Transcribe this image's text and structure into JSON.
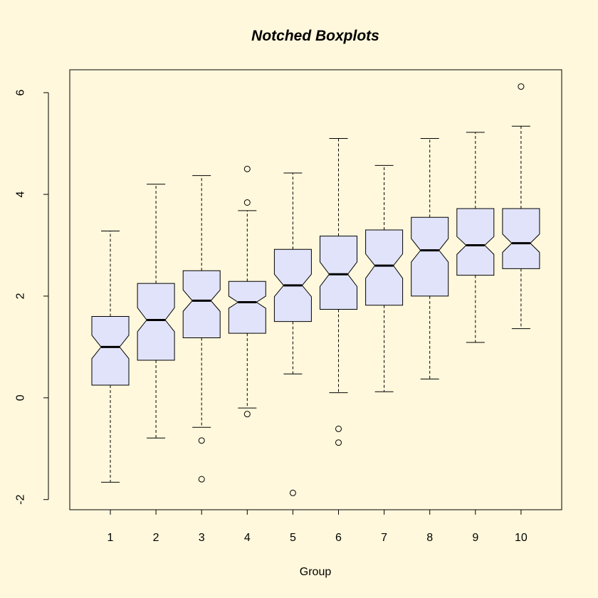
{
  "chart_data": {
    "type": "boxplot",
    "title": "Notched Boxplots",
    "xlabel": "Group",
    "ylabel": "",
    "ylim": [
      -2.2,
      6.45
    ],
    "yticks": [
      "-2",
      "0",
      "2",
      "4",
      "6"
    ],
    "categories": [
      "1",
      "2",
      "3",
      "4",
      "5",
      "6",
      "7",
      "8",
      "9",
      "10"
    ],
    "notched": true,
    "grid": false,
    "colors": {
      "background": "#fff8dc",
      "box_fill": "#e1e3fa",
      "line": "#000000"
    },
    "groups": [
      {
        "label": "1",
        "whisker_low": -1.66,
        "q1": 0.25,
        "median": 1.0,
        "q3": 1.6,
        "whisker_high": 3.28,
        "notch_low": 0.77,
        "notch_high": 1.23,
        "outliers": []
      },
      {
        "label": "2",
        "whisker_low": -0.79,
        "q1": 0.74,
        "median": 1.53,
        "q3": 2.25,
        "whisker_high": 4.2,
        "notch_low": 1.3,
        "notch_high": 1.77,
        "outliers": []
      },
      {
        "label": "3",
        "whisker_low": -0.58,
        "q1": 1.18,
        "median": 1.91,
        "q3": 2.5,
        "whisker_high": 4.37,
        "notch_low": 1.7,
        "notch_high": 2.12,
        "outliers": [
          -0.84,
          -1.6
        ]
      },
      {
        "label": "4",
        "whisker_low": -0.2,
        "q1": 1.27,
        "median": 1.88,
        "q3": 2.29,
        "whisker_high": 3.68,
        "notch_low": 1.76,
        "notch_high": 2.0,
        "outliers": [
          -0.32,
          3.84,
          4.5
        ]
      },
      {
        "label": "5",
        "whisker_low": 0.47,
        "q1": 1.5,
        "median": 2.21,
        "q3": 2.92,
        "whisker_high": 4.42,
        "notch_low": 1.99,
        "notch_high": 2.43,
        "outliers": [
          -1.87
        ]
      },
      {
        "label": "6",
        "whisker_low": 0.1,
        "q1": 1.74,
        "median": 2.43,
        "q3": 3.18,
        "whisker_high": 5.1,
        "notch_low": 2.19,
        "notch_high": 2.67,
        "outliers": [
          -0.61,
          -0.88
        ]
      },
      {
        "label": "7",
        "whisker_low": 0.12,
        "q1": 1.82,
        "median": 2.6,
        "q3": 3.3,
        "whisker_high": 4.57,
        "notch_low": 2.35,
        "notch_high": 2.83,
        "outliers": []
      },
      {
        "label": "8",
        "whisker_low": 0.37,
        "q1": 2.0,
        "median": 2.9,
        "q3": 3.55,
        "whisker_high": 5.1,
        "notch_low": 2.67,
        "notch_high": 3.13,
        "outliers": []
      },
      {
        "label": "9",
        "whisker_low": 1.09,
        "q1": 2.41,
        "median": 3.0,
        "q3": 3.72,
        "whisker_high": 5.22,
        "notch_low": 2.82,
        "notch_high": 3.17,
        "outliers": []
      },
      {
        "label": "10",
        "whisker_low": 1.36,
        "q1": 2.54,
        "median": 3.04,
        "q3": 3.72,
        "whisker_high": 5.34,
        "notch_low": 2.86,
        "notch_high": 3.22,
        "outliers": [
          6.12
        ]
      }
    ]
  }
}
